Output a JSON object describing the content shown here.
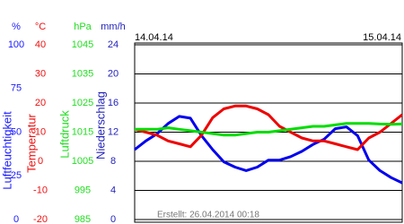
{
  "chart_data": {
    "type": "line",
    "dates": [
      "14.04.14",
      "15.04.14"
    ],
    "footer": "Erstellt: 26.04.2014 00:18",
    "grid": true,
    "axes": [
      {
        "unit": "%",
        "label": "Luftfeuchtigkeit",
        "color": "#1a1aff",
        "ylim": [
          0,
          100
        ],
        "yticks": [
          0,
          25,
          50,
          75,
          100
        ],
        "line_color": "#0000ee",
        "values": [
          40,
          45,
          49,
          55,
          59,
          58,
          48,
          40,
          33,
          30,
          28,
          30,
          34,
          34,
          36,
          39,
          43,
          46,
          52,
          53,
          48,
          34,
          28,
          24,
          21
        ]
      },
      {
        "unit": "°C",
        "label": "Temperatur",
        "color": "#ee1111",
        "ylim": [
          -20,
          40
        ],
        "yticks": [
          -20,
          -10,
          0,
          10,
          20,
          30,
          40
        ],
        "line_color": "#ee0000",
        "values": [
          11,
          10,
          9,
          7,
          6,
          5,
          9,
          15,
          18,
          19,
          19,
          18,
          16,
          12,
          10,
          8,
          7,
          7,
          6,
          5,
          4,
          8,
          10,
          13,
          16
        ]
      },
      {
        "unit": "hPa",
        "label": "Luftdruck",
        "color": "#22dd22",
        "ylim": [
          985,
          1045
        ],
        "yticks": [
          985,
          995,
          1005,
          1015,
          1025,
          1035,
          1045
        ],
        "line_color": "#00dd00",
        "values": [
          1016,
          1016,
          1016,
          1016.5,
          1016,
          1015.5,
          1015,
          1014.5,
          1014,
          1014,
          1014.5,
          1015,
          1015,
          1015.5,
          1016,
          1016.5,
          1017,
          1017,
          1017.5,
          1018,
          1018,
          1018,
          1017.8,
          1017.7,
          1017.8
        ]
      },
      {
        "unit": "mm/h",
        "label": "Niederschlag",
        "color": "#2222bb",
        "ylim": [
          0,
          24
        ],
        "yticks": [
          0,
          4,
          8,
          12,
          16,
          20,
          24
        ]
      }
    ]
  }
}
